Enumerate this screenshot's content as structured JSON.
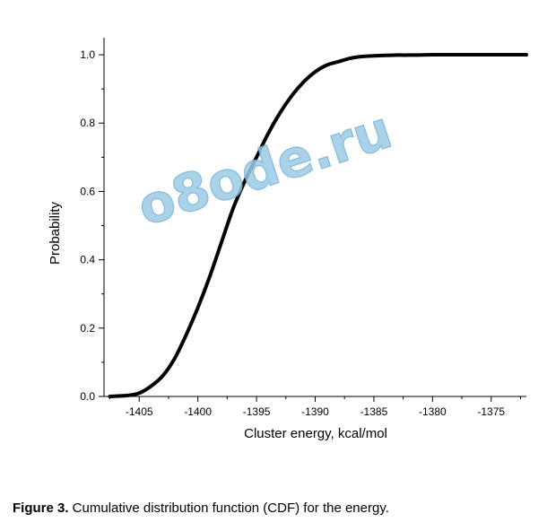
{
  "chart_data": {
    "type": "line",
    "title": "",
    "xlabel": "Cluster energy, kcal/mol",
    "ylabel": "Probability",
    "xlim": [
      -1408,
      -1372
    ],
    "ylim": [
      0,
      1.05
    ],
    "x_ticks": [
      -1405,
      -1400,
      -1395,
      -1390,
      -1385,
      -1380,
      -1375
    ],
    "x_tick_labels": [
      "-1405",
      "-1400",
      "-1395",
      "-1390",
      "-1385",
      "-1380",
      "-1375"
    ],
    "y_ticks": [
      0,
      0.2,
      0.4,
      0.6,
      0.8,
      1.0
    ],
    "y_tick_labels": [
      "0.0",
      "0.2",
      "0.4",
      "0.6",
      "0.8",
      "1.0"
    ],
    "grid": false,
    "series": [
      {
        "color": "#000000",
        "x": [
          -1407.5,
          -1406,
          -1405,
          -1404,
          -1403,
          -1402,
          -1401,
          -1400,
          -1399,
          -1398,
          -1397,
          -1396,
          -1395,
          -1394,
          -1393,
          -1392,
          -1391,
          -1390,
          -1389,
          -1388,
          -1387,
          -1386,
          -1385,
          -1384,
          -1383,
          -1382,
          -1380,
          -1378,
          -1376,
          -1374,
          -1372
        ],
        "y": [
          0.0,
          0.003,
          0.01,
          0.03,
          0.06,
          0.11,
          0.18,
          0.26,
          0.35,
          0.45,
          0.55,
          0.63,
          0.7,
          0.77,
          0.83,
          0.88,
          0.92,
          0.95,
          0.97,
          0.98,
          0.99,
          0.995,
          0.997,
          0.998,
          0.999,
          0.999,
          1.0,
          1.0,
          1.0,
          1.0,
          1.0
        ]
      }
    ]
  },
  "watermark": "o8ode.ru",
  "caption": {
    "label": "Figure 3.",
    "text": " Cumulative distribution function (CDF) for the energy."
  }
}
